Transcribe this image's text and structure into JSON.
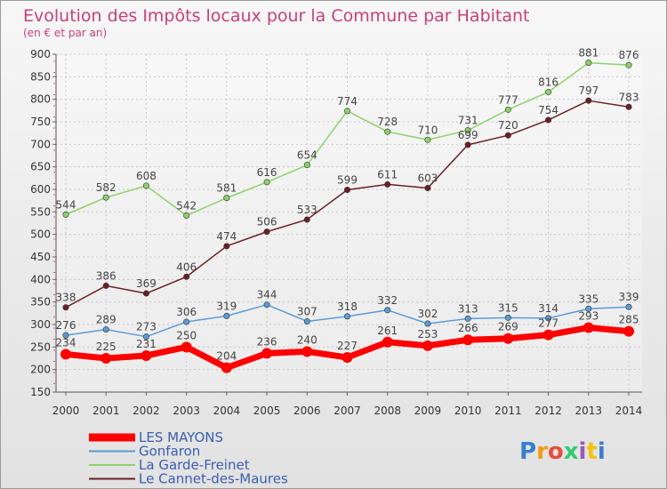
{
  "title": "Evolution des Impôts locaux pour la Commune par Habitant",
  "subtitle": "(en € et par an)",
  "logo": "Proxiti",
  "chart_data": {
    "type": "line",
    "title": "Evolution des Impôts locaux pour la Commune par Habitant",
    "subtitle": "(en € et par an)",
    "x": [
      2000,
      2001,
      2002,
      2003,
      2004,
      2005,
      2006,
      2007,
      2008,
      2009,
      2010,
      2011,
      2012,
      2013,
      2014
    ],
    "ylim": [
      150,
      900
    ],
    "yticks": [
      150,
      200,
      250,
      300,
      350,
      400,
      450,
      500,
      550,
      600,
      650,
      700,
      750,
      800,
      850,
      900
    ],
    "grid": true,
    "legend_position": "bottom-left",
    "series": [
      {
        "name": "LES MAYONS",
        "color": "#ff0000",
        "values": [
          234,
          225,
          231,
          250,
          204,
          236,
          240,
          227,
          261,
          253,
          266,
          269,
          277,
          293,
          285
        ]
      },
      {
        "name": "Gonfaron",
        "color": "#5b9bd5",
        "values": [
          276,
          289,
          273,
          306,
          319,
          344,
          307,
          318,
          332,
          302,
          313,
          315,
          314,
          335,
          339
        ]
      },
      {
        "name": "La Garde-Freinet",
        "color": "#8ed16a",
        "values": [
          544,
          582,
          608,
          542,
          581,
          616,
          654,
          774,
          728,
          710,
          731,
          777,
          816,
          881,
          876
        ]
      },
      {
        "name": "Le Cannet-des-Maures",
        "color": "#6b1f24",
        "values": [
          338,
          386,
          369,
          406,
          474,
          506,
          533,
          599,
          611,
          603,
          699,
          720,
          754,
          797,
          783
        ]
      }
    ]
  }
}
